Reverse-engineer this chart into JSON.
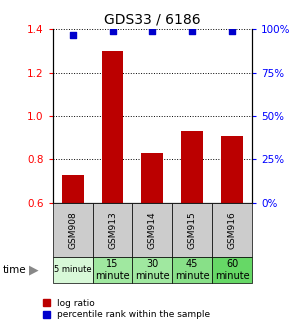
{
  "title": "GDS33 / 6186",
  "categories": [
    "GSM908",
    "GSM913",
    "GSM914",
    "GSM915",
    "GSM916"
  ],
  "time_labels_line1": [
    "5 minute",
    "15",
    "30",
    "45",
    "60"
  ],
  "time_labels_line2": [
    "",
    "minute",
    "minute",
    "minute",
    "minute"
  ],
  "log_ratios": [
    0.73,
    1.3,
    0.83,
    0.93,
    0.91
  ],
  "percentile_rank_values": [
    97,
    99,
    99,
    99,
    99
  ],
  "bar_color": "#bb0000",
  "dot_color": "#0000cc",
  "ylim_left": [
    0.6,
    1.4
  ],
  "ylim_right": [
    0,
    100
  ],
  "yticks_left": [
    0.6,
    0.8,
    1.0,
    1.2,
    1.4
  ],
  "yticks_right": [
    0,
    25,
    50,
    75,
    100
  ],
  "time_bg_colors": [
    "#d8f8d8",
    "#a0e8a0",
    "#a0e8a0",
    "#88e088",
    "#66d866"
  ],
  "sample_bg_color": "#cccccc",
  "legend_labels": [
    "log ratio",
    "percentile rank within the sample"
  ]
}
